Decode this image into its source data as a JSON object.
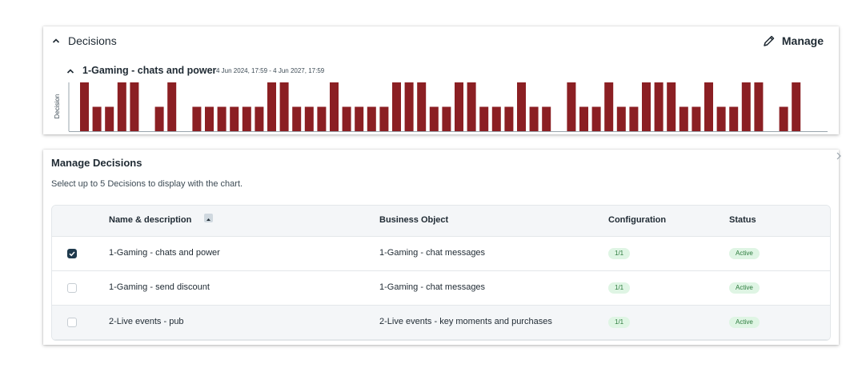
{
  "decisions_panel": {
    "title": "Decisions",
    "manage_label": "Manage",
    "subsection": {
      "title": "1-Gaming - chats and power",
      "date_range": "4 Jun 2024, 17:59 - 4 Jun 2027, 17:59"
    }
  },
  "chart_data": {
    "type": "bar",
    "ylabel": "Decision",
    "xlabel": "",
    "bar_color": "#8b1f23",
    "values": [
      2,
      1,
      1,
      2,
      2,
      0,
      1,
      2,
      0,
      1,
      1,
      1,
      1,
      1,
      1,
      2,
      2,
      1,
      1,
      1,
      2,
      1,
      1,
      1,
      1,
      2,
      2,
      2,
      1,
      1,
      2,
      2,
      1,
      1,
      1,
      2,
      1,
      1,
      0,
      2,
      1,
      1,
      2,
      1,
      1,
      2,
      2,
      2,
      1,
      1,
      2,
      1,
      1,
      2,
      2,
      0,
      1,
      2,
      0
    ],
    "ylim": [
      0,
      2
    ]
  },
  "manage_panel": {
    "title": "Manage Decisions",
    "subtitle": "Select up to 5 Decisions to display with the chart.",
    "columns": {
      "name": "Name & description",
      "business_object": "Business Object",
      "configuration": "Configuration",
      "status": "Status"
    },
    "rows": [
      {
        "name": "1-Gaming - chats and power",
        "business_object": "1-Gaming - chat messages",
        "configuration": "1/1",
        "status": "Active",
        "checked": true
      },
      {
        "name": "1-Gaming - send discount",
        "business_object": "1-Gaming - chat messages",
        "configuration": "1/1",
        "status": "Active",
        "checked": false
      },
      {
        "name": "2-Live events - pub",
        "business_object": "2-Live events - key moments and purchases",
        "configuration": "1/1",
        "status": "Active",
        "checked": false
      }
    ],
    "colors": {
      "badge_bg": "#dff5e4",
      "badge_text": "#2b7a3c",
      "checkbox_checked": "#1f3a4d"
    }
  }
}
